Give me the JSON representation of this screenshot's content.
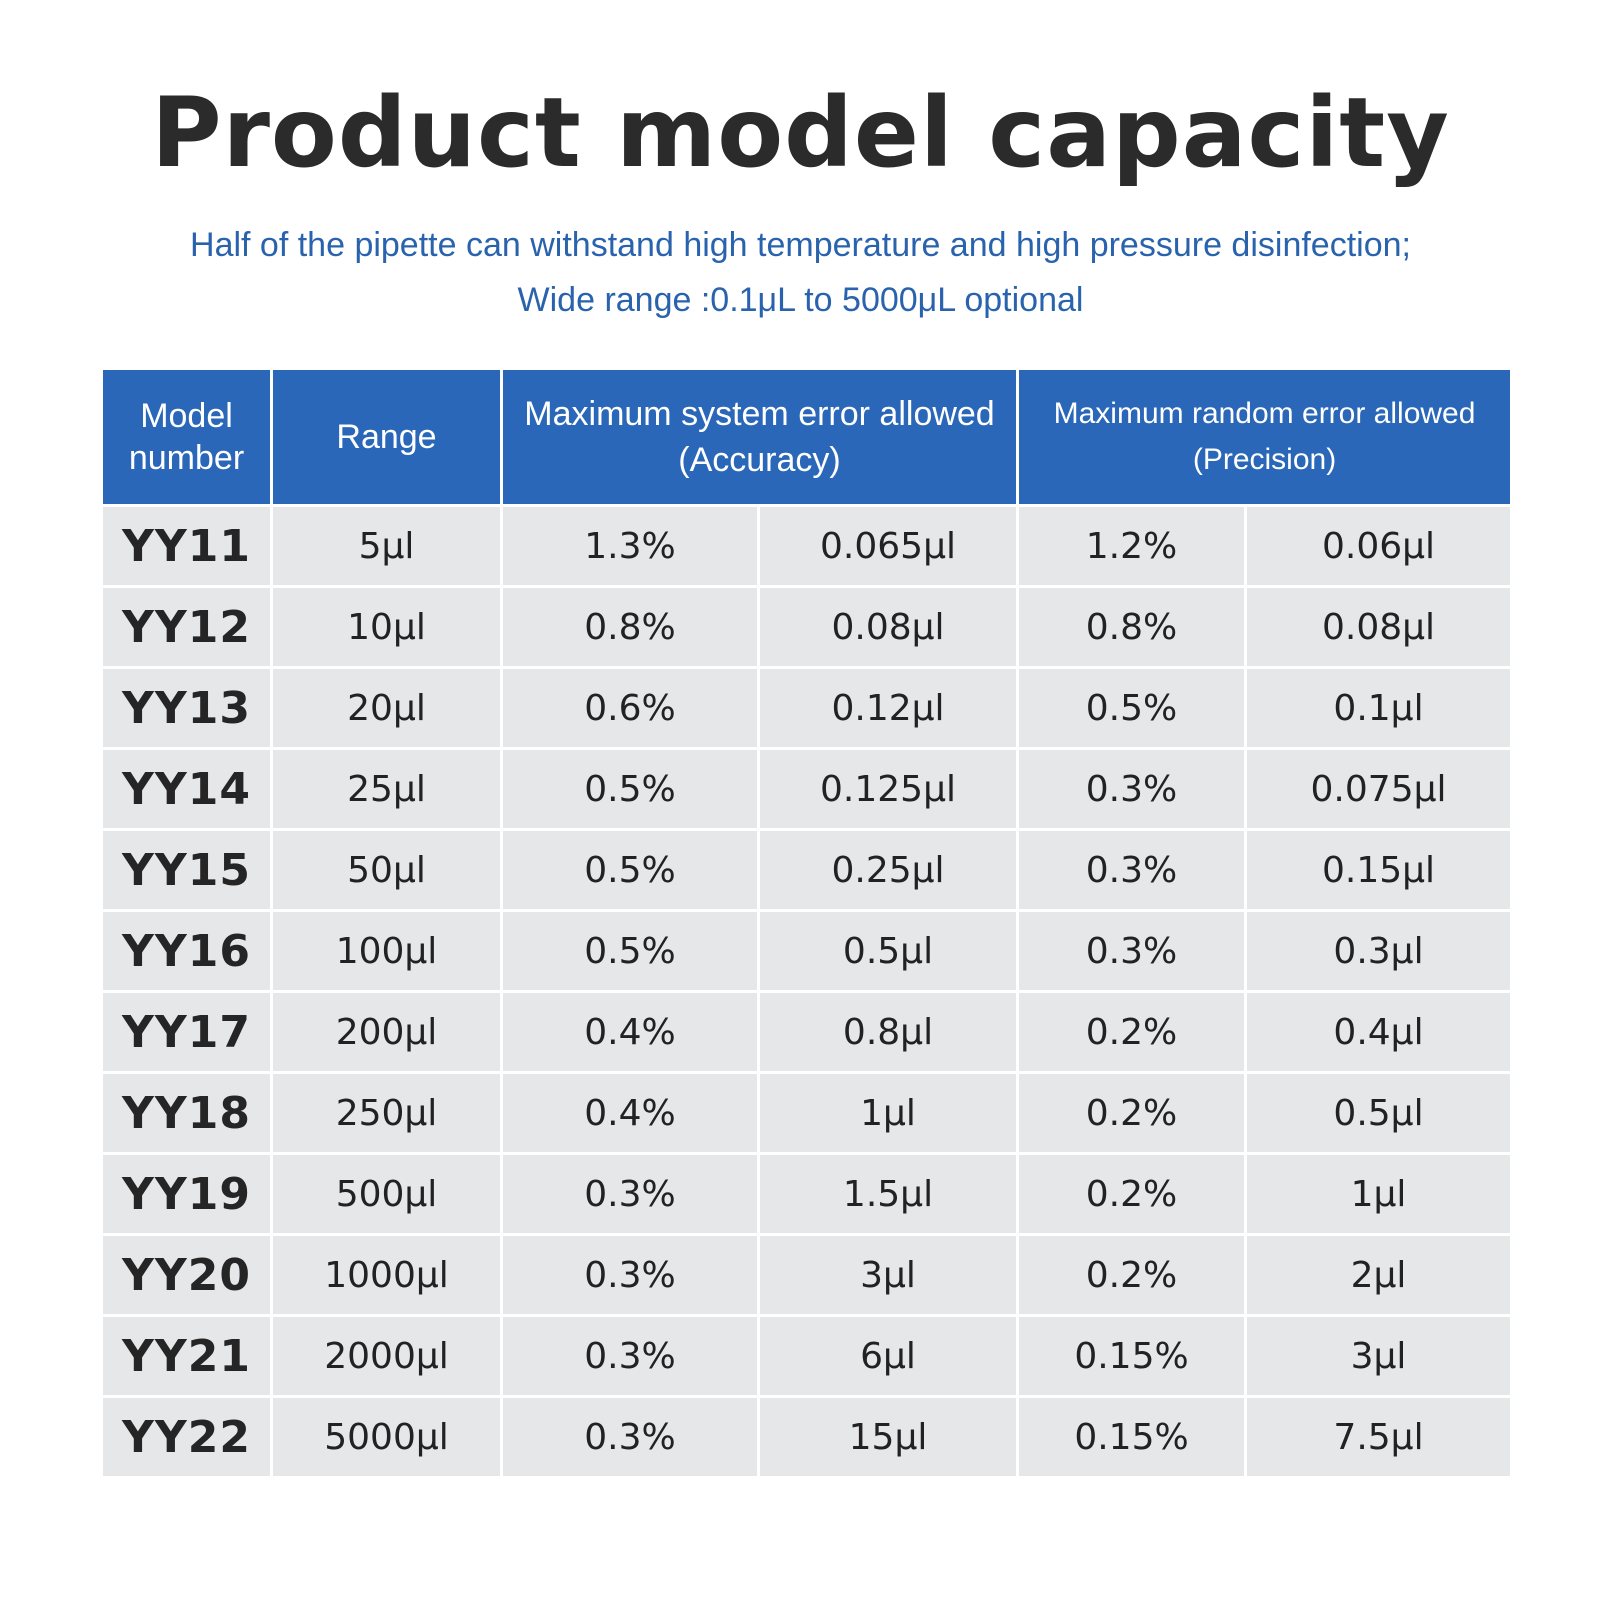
{
  "title": "Product model capacity",
  "subtitle": {
    "line1": "Half of the pipette can withstand high temperature and high pressure disinfection;",
    "line2": "Wide range :0.1μL to 5000μL optional"
  },
  "table": {
    "headers": {
      "model_line1": "Model",
      "model_line2": "number",
      "range": "Range",
      "accuracy_line1": "Maximum system error allowed",
      "accuracy_line2": "(Accuracy)",
      "precision_line1": "Maximum random error allowed",
      "precision_line2": "(Precision)"
    },
    "rows": [
      {
        "model": "YY11",
        "range": "5μl",
        "acc_pct": "1.3%",
        "acc_vol": "0.065μl",
        "prec_pct": "1.2%",
        "prec_vol": "0.06μl"
      },
      {
        "model": "YY12",
        "range": "10μl",
        "acc_pct": "0.8%",
        "acc_vol": "0.08μl",
        "prec_pct": "0.8%",
        "prec_vol": "0.08μl"
      },
      {
        "model": "YY13",
        "range": "20μl",
        "acc_pct": "0.6%",
        "acc_vol": "0.12μl",
        "prec_pct": "0.5%",
        "prec_vol": "0.1μl"
      },
      {
        "model": "YY14",
        "range": "25μl",
        "acc_pct": "0.5%",
        "acc_vol": "0.125μl",
        "prec_pct": "0.3%",
        "prec_vol": "0.075μl"
      },
      {
        "model": "YY15",
        "range": "50μl",
        "acc_pct": "0.5%",
        "acc_vol": "0.25μl",
        "prec_pct": "0.3%",
        "prec_vol": "0.15μl"
      },
      {
        "model": "YY16",
        "range": "100μl",
        "acc_pct": "0.5%",
        "acc_vol": "0.5μl",
        "prec_pct": "0.3%",
        "prec_vol": "0.3μl"
      },
      {
        "model": "YY17",
        "range": "200μl",
        "acc_pct": "0.4%",
        "acc_vol": "0.8μl",
        "prec_pct": "0.2%",
        "prec_vol": "0.4μl"
      },
      {
        "model": "YY18",
        "range": "250μl",
        "acc_pct": "0.4%",
        "acc_vol": "1μl",
        "prec_pct": "0.2%",
        "prec_vol": "0.5μl"
      },
      {
        "model": "YY19",
        "range": "500μl",
        "acc_pct": "0.3%",
        "acc_vol": "1.5μl",
        "prec_pct": "0.2%",
        "prec_vol": "1μl"
      },
      {
        "model": "YY20",
        "range": "1000μl",
        "acc_pct": "0.3%",
        "acc_vol": "3μl",
        "prec_pct": "0.2%",
        "prec_vol": "2μl"
      },
      {
        "model": "YY21",
        "range": "2000μl",
        "acc_pct": "0.3%",
        "acc_vol": "6μl",
        "prec_pct": "0.15%",
        "prec_vol": "3μl"
      },
      {
        "model": "YY22",
        "range": "5000μl",
        "acc_pct": "0.3%",
        "acc_vol": "15μl",
        "prec_pct": "0.15%",
        "prec_vol": "7.5μl"
      }
    ]
  },
  "colors": {
    "header_bg": "#2a67b8",
    "subtitle_text": "#2a63ad",
    "title_text": "#2b2b2b",
    "cell_bg": "#e6e7e9"
  }
}
